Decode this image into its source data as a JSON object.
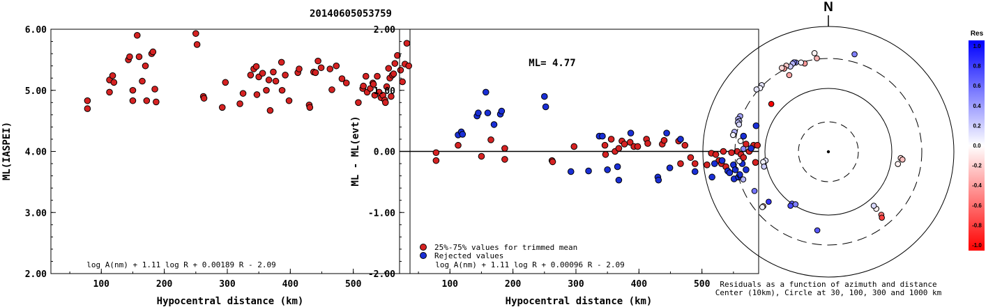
{
  "title": "20140605053759",
  "chart_data": [
    {
      "type": "scatter",
      "xlabel": "Hypocentral distance (km)",
      "ylabel": "ML(IASPEI)",
      "xlim": [
        20,
        590
      ],
      "ylim": [
        2.0,
        6.0
      ],
      "xticks": [
        "100",
        "200",
        "300",
        "400",
        "500"
      ],
      "yticks": [
        "2.00",
        "3.00",
        "4.00",
        "5.00",
        "6.00"
      ],
      "formula": "log A(nm) + 1.11 log R + 0.00189 R - 2.09",
      "series": [
        {
          "color": "#d62222",
          "points": [
            [
              78,
              4.83
            ],
            [
              78,
              4.7
            ],
            [
              113,
              4.97
            ],
            [
              113,
              5.17
            ],
            [
              118,
              5.24
            ],
            [
              120,
              5.13
            ],
            [
              143,
              5.5
            ],
            [
              145,
              5.55
            ],
            [
              150,
              5.0
            ],
            [
              150,
              4.83
            ],
            [
              157,
              5.9
            ],
            [
              160,
              5.55
            ],
            [
              165,
              5.15
            ],
            [
              170,
              5.4
            ],
            [
              172,
              4.83
            ],
            [
              180,
              5.6
            ],
            [
              182,
              5.63
            ],
            [
              185,
              5.02
            ],
            [
              187,
              4.81
            ],
            [
              250,
              5.93
            ],
            [
              252,
              5.75
            ],
            [
              262,
              4.9
            ],
            [
              263,
              4.87
            ],
            [
              292,
              4.72
            ],
            [
              297,
              5.13
            ],
            [
              320,
              4.78
            ],
            [
              325,
              4.95
            ],
            [
              337,
              5.25
            ],
            [
              342,
              5.35
            ],
            [
              346,
              5.39
            ],
            [
              347,
              4.93
            ],
            [
              350,
              5.22
            ],
            [
              356,
              5.28
            ],
            [
              362,
              5.0
            ],
            [
              366,
              5.17
            ],
            [
              368,
              4.67
            ],
            [
              373,
              5.3
            ],
            [
              377,
              5.15
            ],
            [
              386,
              5.46
            ],
            [
              387,
              5.0
            ],
            [
              392,
              5.25
            ],
            [
              398,
              4.83
            ],
            [
              412,
              5.29
            ],
            [
              414,
              5.35
            ],
            [
              430,
              4.76
            ],
            [
              431,
              4.72
            ],
            [
              437,
              5.3
            ],
            [
              440,
              5.29
            ],
            [
              444,
              5.48
            ],
            [
              449,
              5.37
            ],
            [
              463,
              5.35
            ],
            [
              466,
              5.01
            ],
            [
              473,
              5.4
            ],
            [
              482,
              5.19
            ],
            [
              489,
              5.12
            ],
            [
              508,
              4.8
            ],
            [
              515,
              5.03
            ],
            [
              516,
              5.07
            ],
            [
              520,
              5.23
            ],
            [
              522,
              4.97
            ],
            [
              527,
              5.03
            ],
            [
              531,
              5.12
            ],
            [
              532,
              5.1
            ],
            [
              534,
              4.92
            ],
            [
              538,
              5.23
            ],
            [
              541,
              4.97
            ],
            [
              544,
              4.88
            ],
            [
              547,
              4.92
            ],
            [
              550,
              4.84
            ],
            [
              551,
              4.8
            ],
            [
              553,
              5.06
            ],
            [
              556,
              5.36
            ],
            [
              558,
              5.2
            ],
            [
              560,
              4.9
            ],
            [
              562,
              5.25
            ],
            [
              564,
              5.27
            ],
            [
              566,
              5.44
            ],
            [
              570,
              5.57
            ],
            [
              575,
              5.33
            ],
            [
              578,
              5.14
            ],
            [
              582,
              5.43
            ],
            [
              585,
              5.77
            ],
            [
              588,
              5.4
            ]
          ]
        }
      ]
    },
    {
      "type": "scatter",
      "xlabel": "Hypocentral distance (km)",
      "ylabel": "ML - ML(evt)",
      "xlim": [
        20,
        590
      ],
      "ylim": [
        -2.0,
        2.0
      ],
      "xticks": [
        "100",
        "200",
        "300",
        "400",
        "500"
      ],
      "yticks": [
        "-2.00",
        "-1.00",
        "0.00",
        "1.00",
        "2.00"
      ],
      "annotation": "ML= 4.77",
      "formula": "log A(nm) + 1.11 log R + 0.00096 R - 2.09",
      "legend_position": "bottom-left",
      "series": [
        {
          "name": "25%-75% values for trimmed mean",
          "color": "#d62222",
          "points": [
            [
              78,
              -0.02
            ],
            [
              78,
              -0.15
            ],
            [
              113,
              0.1
            ],
            [
              150,
              -0.08
            ],
            [
              165,
              0.19
            ],
            [
              187,
              0.05
            ],
            [
              187,
              -0.13
            ],
            [
              262,
              -0.15
            ],
            [
              263,
              -0.17
            ],
            [
              297,
              0.08
            ],
            [
              346,
              0.1
            ],
            [
              347,
              -0.05
            ],
            [
              356,
              0.2
            ],
            [
              362,
              0.0
            ],
            [
              368,
              0.05
            ],
            [
              373,
              0.17
            ],
            [
              377,
              0.12
            ],
            [
              386,
              0.15
            ],
            [
              392,
              0.08
            ],
            [
              398,
              0.08
            ],
            [
              412,
              0.2
            ],
            [
              414,
              0.13
            ],
            [
              437,
              0.12
            ],
            [
              440,
              0.18
            ],
            [
              463,
              0.17
            ],
            [
              466,
              -0.2
            ],
            [
              473,
              0.1
            ],
            [
              482,
              -0.1
            ],
            [
              489,
              -0.2
            ],
            [
              508,
              -0.22
            ],
            [
              515,
              -0.03
            ],
            [
              522,
              -0.05
            ],
            [
              527,
              -0.15
            ],
            [
              531,
              -0.2
            ],
            [
              534,
              0.0
            ],
            [
              538,
              -0.25
            ],
            [
              547,
              -0.02
            ],
            [
              556,
              0.0
            ],
            [
              562,
              -0.05
            ],
            [
              566,
              -0.1
            ],
            [
              570,
              0.12
            ],
            [
              575,
              0.0
            ],
            [
              582,
              0.1
            ],
            [
              585,
              -0.18
            ],
            [
              588,
              0.1
            ]
          ]
        },
        {
          "name": "Rejected values",
          "color": "#1a2fd6",
          "points": [
            [
              113,
              0.27
            ],
            [
              118,
              0.32
            ],
            [
              120,
              0.28
            ],
            [
              143,
              0.58
            ],
            [
              145,
              0.63
            ],
            [
              157,
              0.97
            ],
            [
              160,
              0.63
            ],
            [
              170,
              0.44
            ],
            [
              180,
              0.61
            ],
            [
              182,
              0.66
            ],
            [
              250,
              0.9
            ],
            [
              252,
              0.73
            ],
            [
              292,
              -0.33
            ],
            [
              320,
              -0.32
            ],
            [
              337,
              0.25
            ],
            [
              342,
              0.25
            ],
            [
              350,
              -0.3
            ],
            [
              366,
              -0.25
            ],
            [
              368,
              -0.47
            ],
            [
              387,
              0.3
            ],
            [
              430,
              -0.42
            ],
            [
              431,
              -0.47
            ],
            [
              444,
              0.3
            ],
            [
              449,
              -0.27
            ],
            [
              466,
              0.2
            ],
            [
              489,
              -0.33
            ],
            [
              516,
              -0.42
            ],
            [
              520,
              -0.2
            ],
            [
              532,
              -0.15
            ],
            [
              541,
              -0.32
            ],
            [
              544,
              -0.35
            ],
            [
              550,
              -0.22
            ],
            [
              551,
              -0.45
            ],
            [
              553,
              -0.3
            ],
            [
              558,
              -0.42
            ],
            [
              560,
              -0.38
            ],
            [
              564,
              -0.2
            ],
            [
              566,
              0.25
            ],
            [
              570,
              -0.3
            ],
            [
              578,
              0.05
            ],
            [
              586,
              0.42
            ]
          ]
        }
      ]
    },
    {
      "type": "polar-scatter",
      "north_label": "N",
      "caption_line1": "Residuals as a function of azimuth and distance",
      "caption_line2": "Center (10km), Circle at 30, 100, 300 and 1000 km",
      "colorbar": {
        "title": "Res",
        "ticks": [
          "1.0",
          "0.8",
          "0.6",
          "0.4",
          "0.2",
          "0.0",
          "-0.2",
          "-0.4",
          "-0.6",
          "-0.8",
          "-1.0"
        ],
        "max_color": "#0000ff",
        "zero_color": "#ffffff",
        "min_color": "#ff0000"
      },
      "points": [
        {
          "az": 15,
          "dist": 400,
          "res": 0.5
        },
        {
          "az": -8,
          "dist": 380,
          "res": -0.05
        },
        {
          "az": -7,
          "dist": 310,
          "res": -0.3
        },
        {
          "az": -15,
          "dist": 280,
          "res": -0.4
        },
        {
          "az": -17,
          "dist": 300,
          "res": 0.05
        },
        {
          "az": -20,
          "dist": 320,
          "res": 0.4
        },
        {
          "az": -21,
          "dist": 330,
          "res": 0.5
        },
        {
          "az": -22,
          "dist": 320,
          "res": 0.3
        },
        {
          "az": -24,
          "dist": 300,
          "res": 0.2
        },
        {
          "az": -26,
          "dist": 330,
          "res": -0.2
        },
        {
          "az": -28,
          "dist": 310,
          "res": -0.4
        },
        {
          "az": -29,
          "dist": 330,
          "res": -0.15
        },
        {
          "az": -27,
          "dist": 230,
          "res": -0.35
        },
        {
          "az": -45,
          "dist": 310,
          "res": 0.1
        },
        {
          "az": -47,
          "dist": 300,
          "res": 0.05
        },
        {
          "az": -49,
          "dist": 320,
          "res": 0.1
        },
        {
          "az": -50,
          "dist": 150,
          "res": -1.0
        },
        {
          "az": -68,
          "dist": 320,
          "res": 0.35
        },
        {
          "az": -70,
          "dist": 330,
          "res": 0.3
        },
        {
          "az": -71,
          "dist": 310,
          "res": 0.2
        },
        {
          "az": -72,
          "dist": 320,
          "res": 0.25
        },
        {
          "az": -73,
          "dist": 300,
          "res": 0.15
        },
        {
          "az": -78,
          "dist": 330,
          "res": 0.3
        },
        {
          "az": -80,
          "dist": 340,
          "res": 0.05
        },
        {
          "az": -83,
          "dist": 250,
          "res": 0.0
        },
        {
          "az": -88,
          "dist": 220,
          "res": 0.45
        },
        {
          "az": -96,
          "dist": 260,
          "res": 0.05
        },
        {
          "az": -98,
          "dist": 100,
          "res": 0.1
        },
        {
          "az": -99,
          "dist": 110,
          "res": 0.05
        },
        {
          "az": -103,
          "dist": 110,
          "res": 0.2
        },
        {
          "az": -108,
          "dist": 260,
          "res": 0.3
        },
        {
          "az": -118,
          "dist": 210,
          "res": 0.55
        },
        {
          "az": -130,
          "dist": 170,
          "res": 0.8
        },
        {
          "az": -130,
          "dist": 220,
          "res": -0.25
        },
        {
          "az": -130,
          "dist": 230,
          "res": 0.05
        },
        {
          "az": -145,
          "dist": 100,
          "res": 0.6
        },
        {
          "az": -145,
          "dist": 110,
          "res": 0.7
        },
        {
          "az": -148,
          "dist": 95,
          "res": 0.5
        },
        {
          "az": -172,
          "dist": 180,
          "res": 0.65
        },
        {
          "az": 140,
          "dist": 200,
          "res": -0.55
        },
        {
          "az": 141,
          "dist": 220,
          "res": -0.75
        },
        {
          "az": 140,
          "dist": 150,
          "res": -0.05
        },
        {
          "az": 140,
          "dist": 130,
          "res": 0.15
        },
        {
          "az": 100,
          "dist": 130,
          "res": -0.05
        },
        {
          "az": 95,
          "dist": 140,
          "res": -0.15
        },
        {
          "az": 96,
          "dist": 150,
          "res": -0.25
        }
      ]
    }
  ]
}
